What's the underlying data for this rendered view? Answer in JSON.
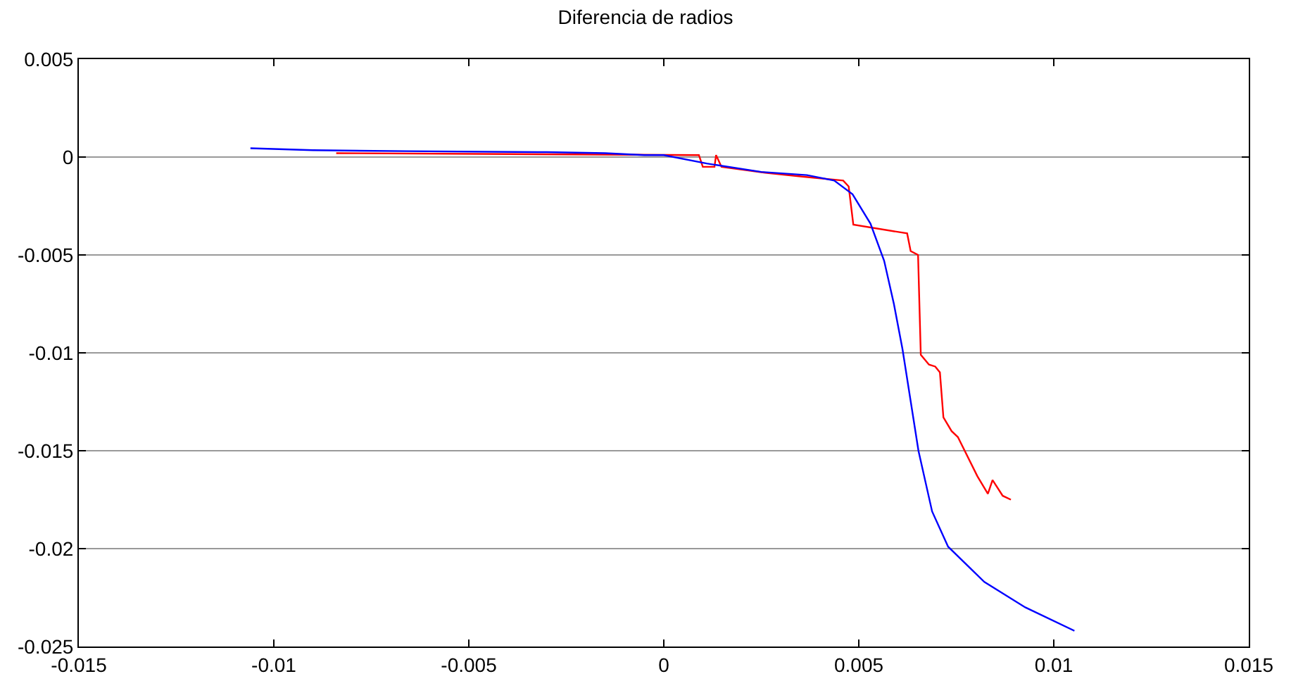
{
  "chart_data": {
    "type": "line",
    "title": "Diferencia de radios",
    "xlim": [
      -0.015,
      0.015
    ],
    "xticks": [
      -0.015,
      -0.01,
      -0.005,
      0,
      0.005,
      0.01,
      0.015
    ],
    "ylim": [
      -0.025,
      0.005
    ],
    "yticks": [
      -0.025,
      -0.02,
      -0.015,
      -0.01,
      -0.005,
      0,
      0.005
    ],
    "grid": "y",
    "series": [
      {
        "color": "#ff0000",
        "x": [
          -0.0084,
          -0.004,
          0.0009,
          0.001,
          0.0013,
          0.00134,
          0.00148,
          0.0026,
          0.00355,
          0.0046,
          0.00474,
          0.00486,
          0.00624,
          0.00633,
          0.00652,
          0.00659,
          0.0068,
          0.00696,
          0.00708,
          0.00717,
          0.00738,
          0.00754,
          0.00804,
          0.00831,
          0.00843,
          0.00869,
          0.0089
        ],
        "values": [
          0.0002,
          0.00015,
          0.0001,
          -0.0005,
          -0.0005,
          0.0001,
          -0.0005,
          -0.0008,
          -0.001,
          -0.0012,
          -0.0015,
          -0.00345,
          -0.0039,
          -0.0048,
          -0.005,
          -0.0101,
          -0.0106,
          -0.0107,
          -0.011,
          -0.0133,
          -0.014,
          -0.0143,
          -0.0163,
          -0.0172,
          -0.0165,
          -0.0173,
          -0.0175
        ]
      },
      {
        "color": "#0000ff",
        "x": [
          -0.0106,
          -0.009,
          -0.0066,
          -0.003,
          -0.0015,
          -0.0005,
          0.0,
          0.0011,
          0.0025,
          0.00367,
          0.00437,
          0.00484,
          0.0053,
          0.00565,
          0.0059,
          0.00612,
          0.00653,
          0.00688,
          0.00729,
          0.00822,
          0.00927,
          0.01053
        ],
        "values": [
          0.00045,
          0.00035,
          0.0003,
          0.00025,
          0.0002,
          0.0001,
          0.0001,
          -0.00033,
          -0.00076,
          -0.00092,
          -0.0012,
          -0.0019,
          -0.0034,
          -0.0053,
          -0.0075,
          -0.0098,
          -0.015,
          -0.0181,
          -0.0199,
          -0.0217,
          -0.023,
          -0.0242
        ]
      }
    ]
  }
}
